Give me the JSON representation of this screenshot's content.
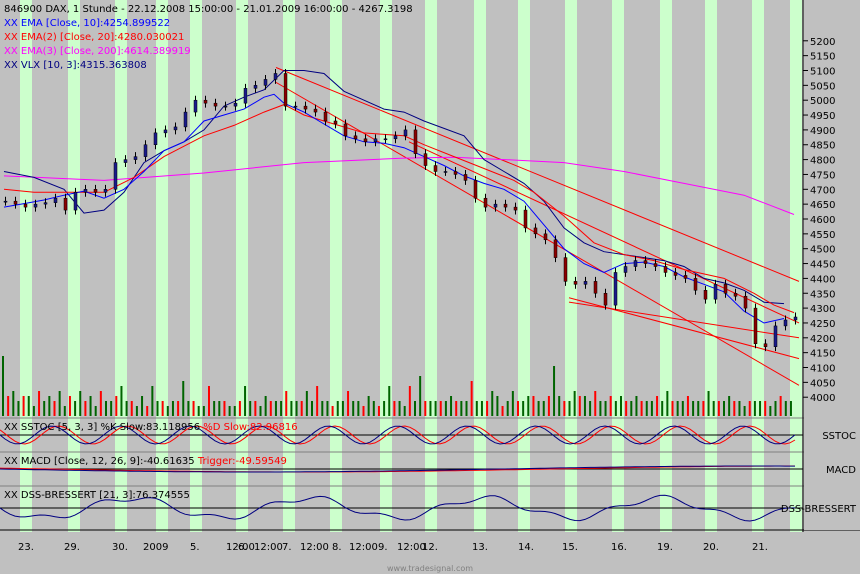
{
  "chart_data": {
    "type": "candlestick",
    "symbol": "846900",
    "name": "DAX",
    "interval": "1 Stunde",
    "range": "22.12.2008 15:00:00 - 21.01.2009 16:00:00",
    "last": "4267.3198",
    "header": "846900  DAX, 1 Stunde - 22.12.2008 15:00:00 - 21.01.2009 16:00:00 - 4267.3198",
    "colors": {
      "background": "#c0c0c0",
      "stripe": "#ccffcc",
      "up_candle": "#1a1a8c",
      "down_candle": "#8b0000",
      "ema10": "#0000ff",
      "ema20": "#ff0000",
      "ema200": "#ff00ff",
      "vlx": "#000080",
      "volume_up": "#006400",
      "volume_down": "#ff0000",
      "channel": "#ff0000"
    },
    "indicators": [
      {
        "key": "ema10",
        "prefix": "XX",
        "text": "EMA [Close, 10]:4254.899522",
        "color": "#0000ff"
      },
      {
        "key": "ema20",
        "prefix": "XX",
        "text": "EMA(2) [Close, 20]:4280.030021",
        "color": "#ff0000"
      },
      {
        "key": "ema200",
        "prefix": "XX",
        "text": "EMA(3) [Close, 200]:4614.389919",
        "color": "#ff00ff"
      },
      {
        "key": "vlx",
        "prefix": "XX",
        "text": "VLX [10, 3]:4315.363808",
        "color": "#000080"
      }
    ],
    "y_axis": {
      "min": 3930,
      "max": 5270,
      "ticks": [
        5200,
        5150,
        5100,
        5050,
        5000,
        4950,
        4900,
        4850,
        4800,
        4750,
        4700,
        4650,
        4600,
        4550,
        4500,
        4450,
        4400,
        4350,
        4300,
        4250,
        4200,
        4150,
        4100,
        4050,
        4000
      ]
    },
    "x_axis": {
      "labels": [
        "23.",
        "29.",
        "30.",
        "2009",
        "5.",
        "12:00",
        "6.",
        "12:00",
        "7.",
        "12:00",
        "8.",
        "12:00",
        "9.",
        "12:00",
        "12.",
        "13.",
        "14.",
        "15.",
        "16.",
        "19.",
        "20.",
        "21."
      ]
    },
    "price": {
      "ema10": [
        [
          0,
          4640
        ],
        [
          20,
          4652
        ],
        [
          40,
          4664
        ],
        [
          60,
          4680
        ],
        [
          80,
          4694
        ],
        [
          100,
          4670
        ],
        [
          120,
          4700
        ],
        [
          140,
          4760
        ],
        [
          160,
          4830
        ],
        [
          180,
          4860
        ],
        [
          200,
          4930
        ],
        [
          220,
          4950
        ],
        [
          240,
          4970
        ],
        [
          260,
          5010
        ],
        [
          270,
          5020
        ],
        [
          280,
          4990
        ],
        [
          300,
          4960
        ],
        [
          320,
          4920
        ],
        [
          340,
          4880
        ],
        [
          360,
          4860
        ],
        [
          380,
          4855
        ],
        [
          400,
          4840
        ],
        [
          420,
          4810
        ],
        [
          440,
          4780
        ],
        [
          460,
          4745
        ],
        [
          480,
          4720
        ],
        [
          500,
          4700
        ],
        [
          520,
          4660
        ],
        [
          540,
          4580
        ],
        [
          560,
          4500
        ],
        [
          580,
          4450
        ],
        [
          600,
          4420
        ],
        [
          620,
          4450
        ],
        [
          640,
          4455
        ],
        [
          660,
          4440
        ],
        [
          680,
          4405
        ],
        [
          700,
          4380
        ],
        [
          720,
          4355
        ],
        [
          740,
          4290
        ],
        [
          760,
          4250
        ],
        [
          780,
          4265
        ]
      ],
      "ema20": [
        [
          0,
          4700
        ],
        [
          30,
          4690
        ],
        [
          60,
          4690
        ],
        [
          100,
          4690
        ],
        [
          130,
          4740
        ],
        [
          160,
          4810
        ],
        [
          200,
          4880
        ],
        [
          230,
          4915
        ],
        [
          260,
          4960
        ],
        [
          280,
          4985
        ],
        [
          300,
          4950
        ],
        [
          330,
          4920
        ],
        [
          360,
          4890
        ],
        [
          380,
          4885
        ],
        [
          400,
          4880
        ],
        [
          420,
          4850
        ],
        [
          450,
          4810
        ],
        [
          480,
          4770
        ],
        [
          510,
          4730
        ],
        [
          530,
          4690
        ],
        [
          560,
          4610
        ],
        [
          590,
          4520
        ],
        [
          620,
          4480
        ],
        [
          650,
          4460
        ],
        [
          680,
          4430
        ],
        [
          720,
          4400
        ],
        [
          750,
          4350
        ],
        [
          770,
          4310
        ],
        [
          790,
          4285
        ]
      ],
      "ema200": [
        [
          0,
          4745
        ],
        [
          100,
          4730
        ],
        [
          200,
          4755
        ],
        [
          300,
          4790
        ],
        [
          400,
          4805
        ],
        [
          450,
          4808
        ],
        [
          500,
          4800
        ],
        [
          560,
          4790
        ],
        [
          620,
          4760
        ],
        [
          680,
          4720
        ],
        [
          740,
          4680
        ],
        [
          790,
          4615
        ]
      ],
      "vlx": [
        [
          0,
          4760
        ],
        [
          30,
          4740
        ],
        [
          60,
          4700
        ],
        [
          80,
          4620
        ],
        [
          100,
          4630
        ],
        [
          120,
          4690
        ],
        [
          140,
          4790
        ],
        [
          160,
          4830
        ],
        [
          180,
          4860
        ],
        [
          200,
          4900
        ],
        [
          220,
          4980
        ],
        [
          240,
          5010
        ],
        [
          260,
          5035
        ],
        [
          280,
          5100
        ],
        [
          300,
          5100
        ],
        [
          320,
          5090
        ],
        [
          340,
          5030
        ],
        [
          360,
          5000
        ],
        [
          380,
          4970
        ],
        [
          400,
          4960
        ],
        [
          420,
          4930
        ],
        [
          440,
          4905
        ],
        [
          460,
          4880
        ],
        [
          480,
          4800
        ],
        [
          500,
          4760
        ],
        [
          520,
          4720
        ],
        [
          540,
          4660
        ],
        [
          560,
          4570
        ],
        [
          580,
          4520
        ],
        [
          600,
          4490
        ],
        [
          620,
          4480
        ],
        [
          640,
          4470
        ],
        [
          660,
          4460
        ],
        [
          680,
          4440
        ],
        [
          700,
          4400
        ],
        [
          720,
          4385
        ],
        [
          740,
          4360
        ],
        [
          760,
          4320
        ],
        [
          780,
          4315
        ]
      ]
    },
    "candles_close": [
      [
        0,
        4660
      ],
      [
        10,
        4650
      ],
      [
        20,
        4640
      ],
      [
        30,
        4650
      ],
      [
        40,
        4655
      ],
      [
        50,
        4670
      ],
      [
        60,
        4630
      ],
      [
        70,
        4690
      ],
      [
        80,
        4700
      ],
      [
        90,
        4690
      ],
      [
        100,
        4700
      ],
      [
        110,
        4790
      ],
      [
        120,
        4800
      ],
      [
        130,
        4810
      ],
      [
        140,
        4850
      ],
      [
        150,
        4890
      ],
      [
        160,
        4900
      ],
      [
        170,
        4910
      ],
      [
        180,
        4960
      ],
      [
        190,
        5000
      ],
      [
        200,
        4990
      ],
      [
        210,
        4980
      ],
      [
        220,
        4980
      ],
      [
        230,
        4990
      ],
      [
        240,
        5040
      ],
      [
        250,
        5050
      ],
      [
        260,
        5070
      ],
      [
        270,
        5090
      ],
      [
        280,
        4980
      ],
      [
        290,
        4980
      ],
      [
        300,
        4970
      ],
      [
        310,
        4960
      ],
      [
        320,
        4930
      ],
      [
        330,
        4920
      ],
      [
        340,
        4880
      ],
      [
        350,
        4870
      ],
      [
        360,
        4860
      ],
      [
        370,
        4870
      ],
      [
        380,
        4870
      ],
      [
        390,
        4880
      ],
      [
        400,
        4900
      ],
      [
        410,
        4820
      ],
      [
        420,
        4780
      ],
      [
        430,
        4760
      ],
      [
        440,
        4760
      ],
      [
        450,
        4750
      ],
      [
        460,
        4730
      ],
      [
        470,
        4670
      ],
      [
        480,
        4640
      ],
      [
        490,
        4650
      ],
      [
        500,
        4640
      ],
      [
        510,
        4630
      ],
      [
        520,
        4570
      ],
      [
        530,
        4550
      ],
      [
        540,
        4530
      ],
      [
        550,
        4470
      ],
      [
        560,
        4390
      ],
      [
        570,
        4380
      ],
      [
        580,
        4390
      ],
      [
        590,
        4350
      ],
      [
        600,
        4310
      ],
      [
        610,
        4420
      ],
      [
        620,
        4440
      ],
      [
        630,
        4460
      ],
      [
        640,
        4450
      ],
      [
        650,
        4440
      ],
      [
        660,
        4420
      ],
      [
        670,
        4410
      ],
      [
        680,
        4400
      ],
      [
        690,
        4360
      ],
      [
        700,
        4330
      ],
      [
        710,
        4380
      ],
      [
        720,
        4350
      ],
      [
        730,
        4340
      ],
      [
        740,
        4300
      ],
      [
        750,
        4180
      ],
      [
        760,
        4170
      ],
      [
        770,
        4240
      ],
      [
        780,
        4260
      ],
      [
        790,
        4270
      ]
    ],
    "channels": [
      {
        "from": [
          272,
          5110
        ],
        "to": [
          795,
          4390
        ]
      },
      {
        "from": [
          272,
          5060
        ],
        "to": [
          795,
          4040
        ]
      },
      {
        "from": [
          405,
          4860
        ],
        "to": [
          795,
          4250
        ]
      },
      {
        "from": [
          565,
          4335
        ],
        "to": [
          795,
          4130
        ]
      },
      {
        "from": [
          565,
          4320
        ],
        "to": [
          795,
          4200
        ]
      }
    ],
    "volume": [
      12,
      4,
      5,
      3,
      4,
      4,
      2,
      5,
      3,
      4,
      3,
      5,
      2,
      4,
      3,
      5,
      3,
      4,
      2,
      5,
      3,
      3,
      4,
      6,
      3,
      3,
      2,
      4,
      2,
      6,
      3,
      3,
      2,
      3,
      3,
      7,
      3,
      3,
      2,
      2,
      6,
      3,
      3,
      3,
      2,
      2,
      3,
      6,
      3,
      3,
      2,
      4,
      3,
      3,
      3,
      5,
      3,
      3,
      3,
      5,
      3,
      6,
      3,
      3,
      2,
      3,
      3,
      5,
      3,
      3,
      2,
      4,
      3,
      2,
      3,
      6,
      3,
      3,
      2,
      6,
      3,
      8,
      3,
      3,
      3,
      3,
      3,
      4,
      3,
      3,
      3,
      7,
      3,
      3,
      3,
      5,
      4,
      2,
      3,
      5,
      3,
      3,
      4,
      4,
      3,
      3,
      4,
      10,
      4,
      3,
      3,
      5,
      4,
      4,
      3,
      5,
      3,
      3,
      4,
      3,
      4,
      3,
      3,
      4,
      3,
      3,
      3,
      4,
      3,
      5,
      3,
      3,
      3,
      4,
      3,
      3,
      3,
      5,
      3,
      3,
      3,
      4,
      3,
      3,
      2,
      3,
      3,
      3,
      3,
      2,
      3,
      4,
      3,
      3
    ],
    "panels": [
      {
        "key": "sstoc",
        "label": "SSTOC",
        "prefix": "XX",
        "text": "SSTOC [5, 3, 3]  %K Slow:83.118956",
        "text2": "%D Slow:82.96816",
        "color": "#000080",
        "color2": "#ff0000"
      },
      {
        "key": "macd",
        "label": "MACD",
        "prefix": "XX",
        "text": "MACD [Close, 12, 26, 9]:-40.61635",
        "text2": "Trigger:-49.59549",
        "color": "#000080",
        "color2": "#ff0000"
      },
      {
        "key": "dss",
        "label": "DSS-BRESSERT",
        "prefix": "XX",
        "text": "DSS-BRESSERT [21, 3]:76.374555",
        "color": "#000080"
      }
    ],
    "footer": "www.tradesignal.com"
  }
}
